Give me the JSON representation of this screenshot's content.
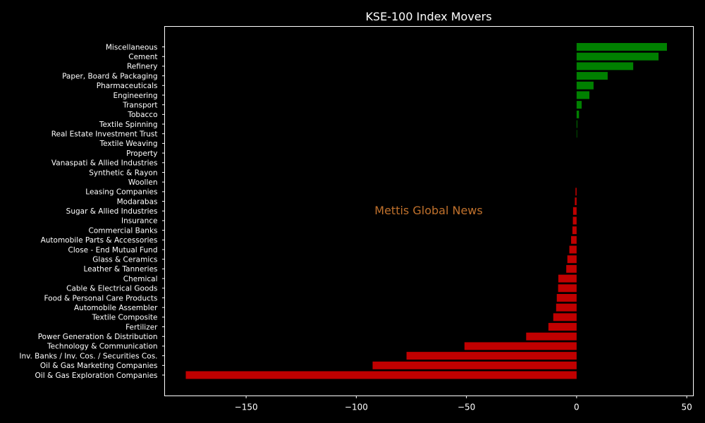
{
  "chart_data": {
    "type": "bar",
    "orientation": "horizontal",
    "title": "KSE-100 Index Movers",
    "xlabel": "",
    "ylabel": "",
    "xlim": [
      -187,
      53
    ],
    "xticks": [
      -150,
      -100,
      -50,
      0,
      50
    ],
    "xtick_labels": [
      "−150",
      "−100",
      "−50",
      "0",
      "50"
    ],
    "grid": false,
    "positive_color": "#008000",
    "negative_color": "#c00000",
    "watermark": "Mettis Global News",
    "categories": [
      "Miscellaneous",
      "Cement",
      "Refinery",
      "Paper, Board & Packaging",
      "Pharmaceuticals",
      "Engineering",
      "Transport",
      "Tobacco",
      "Textile Spinning",
      "Real Estate Investment Trust",
      "Textile Weaving",
      "Property",
      "Vanaspati & Allied Industries",
      "Synthetic & Rayon",
      "Woollen",
      "Leasing Companies",
      "Modarabas",
      "Sugar & Allied Industries",
      "Insurance",
      "Commercial Banks",
      "Automobile Parts & Accessories",
      "Close - End Mutual Fund",
      "Glass & Ceramics",
      "Leather & Tanneries",
      "Chemical",
      "Cable & Electrical Goods",
      "Food & Personal Care Products",
      "Automobile Assembler",
      "Textile Composite",
      "Fertilizer",
      "Power Generation & Distribution",
      "Technology & Communication",
      "Inv. Banks / Inv. Cos. / Securities Cos.",
      "Oil & Gas Marketing Companies",
      "Oil & Gas Exploration Companies"
    ],
    "values": [
      41.0,
      37.2,
      25.7,
      14.1,
      7.7,
      5.8,
      2.3,
      1.1,
      0.3,
      0.2,
      0.0,
      0.0,
      0.0,
      0.0,
      0.0,
      -0.5,
      -0.8,
      -1.6,
      -1.7,
      -1.9,
      -2.5,
      -3.3,
      -4.2,
      -4.7,
      -8.3,
      -8.4,
      -9.0,
      -9.3,
      -10.6,
      -12.8,
      -22.9,
      -50.9,
      -77.2,
      -92.6,
      -177.4
    ]
  }
}
